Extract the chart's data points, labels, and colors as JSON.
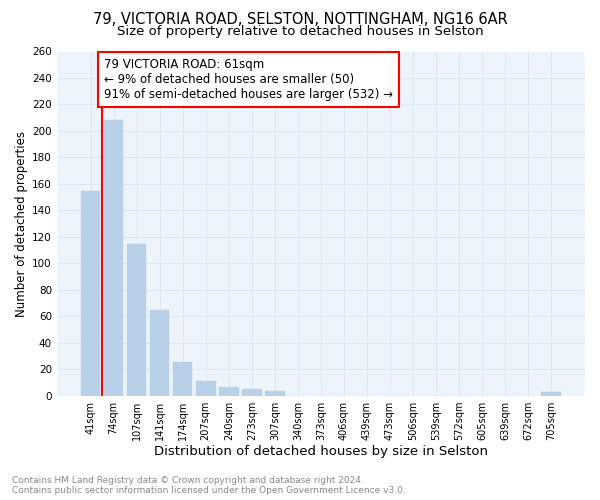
{
  "title1": "79, VICTORIA ROAD, SELSTON, NOTTINGHAM, NG16 6AR",
  "title2": "Size of property relative to detached houses in Selston",
  "xlabel": "Distribution of detached houses by size in Selston",
  "ylabel": "Number of detached properties",
  "footnote1": "Contains HM Land Registry data © Crown copyright and database right 2024.",
  "footnote2": "Contains public sector information licensed under the Open Government Licence v3.0.",
  "categories": [
    "41sqm",
    "74sqm",
    "107sqm",
    "141sqm",
    "174sqm",
    "207sqm",
    "240sqm",
    "273sqm",
    "307sqm",
    "340sqm",
    "373sqm",
    "406sqm",
    "439sqm",
    "473sqm",
    "506sqm",
    "539sqm",
    "572sqm",
    "605sqm",
    "639sqm",
    "672sqm",
    "705sqm"
  ],
  "values": [
    155,
    208,
    115,
    65,
    26,
    11,
    7,
    5,
    4,
    0,
    0,
    0,
    0,
    0,
    0,
    0,
    0,
    0,
    0,
    0,
    3
  ],
  "bar_color": "#b8d0e8",
  "bar_edgecolor": "#b8d0e8",
  "annotation_line1": "79 VICTORIA ROAD: 61sqm",
  "annotation_line2": "← 9% of detached houses are smaller (50)",
  "annotation_line3": "91% of semi-detached houses are larger (532) →",
  "property_line_x": 0.5,
  "ylim": [
    0,
    260
  ],
  "yticks": [
    0,
    20,
    40,
    60,
    80,
    100,
    120,
    140,
    160,
    180,
    200,
    220,
    240,
    260
  ],
  "grid_color": "#dce8f5",
  "background_color": "#eef4fb",
  "title1_fontsize": 10.5,
  "title2_fontsize": 9.5,
  "annotation_fontsize": 8.5,
  "xlabel_fontsize": 9.5,
  "ylabel_fontsize": 8.5,
  "footnote_fontsize": 6.5,
  "footnote_color": "#888888"
}
